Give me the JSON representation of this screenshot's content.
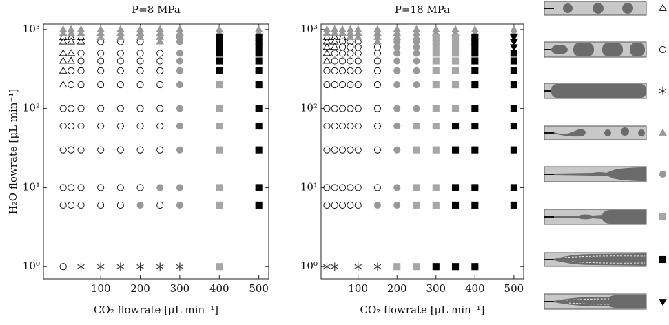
{
  "chart_data": [
    {
      "type": "scatter",
      "title": "P=8 MPa",
      "xlabel": "CO₂ flowrate [μL min⁻¹]",
      "ylabel": "H₂O flowrate [μL min⁻¹]",
      "xlim": [
        -45,
        525
      ],
      "xticks": [
        100,
        200,
        300,
        400,
        500
      ],
      "ylim": [
        0.7,
        1170
      ],
      "log_y": true,
      "yticks": [
        {
          "value": 1,
          "label": "10⁰"
        },
        {
          "value": 10,
          "label": "10¹"
        },
        {
          "value": 100,
          "label": "10²"
        },
        {
          "value": 1000,
          "label": "10³"
        }
      ],
      "series": [
        {
          "marker": "triangle-up",
          "filled": false,
          "color": "#000000",
          "x": [
            5,
            5,
            5,
            5,
            5,
            5,
            25,
            25,
            25,
            25,
            50,
            50
          ],
          "values": [
            800,
            700,
            500,
            400,
            300,
            200,
            800,
            700,
            500,
            400,
            800,
            700
          ]
        },
        {
          "marker": "circle",
          "filled": false,
          "color": "#000000",
          "x": [
            5,
            5,
            5,
            5,
            5,
            5,
            25,
            25,
            25,
            25,
            25,
            25,
            25,
            50,
            50,
            50,
            50,
            50,
            50,
            50,
            50,
            50,
            100,
            100,
            100,
            100,
            100,
            100,
            100,
            100,
            100,
            100,
            150,
            150,
            150,
            150,
            150,
            150,
            150,
            150,
            150,
            150,
            200,
            200,
            200,
            200,
            200,
            200,
            200,
            200,
            200,
            250,
            250,
            250,
            250,
            250,
            250,
            250,
            250
          ],
          "values": [
            100,
            60,
            30,
            10,
            6,
            1,
            300,
            200,
            100,
            60,
            30,
            10,
            6,
            500,
            400,
            300,
            200,
            100,
            60,
            30,
            10,
            6,
            700,
            500,
            400,
            300,
            200,
            100,
            60,
            30,
            10,
            6,
            700,
            500,
            400,
            300,
            200,
            100,
            60,
            30,
            10,
            6,
            700,
            500,
            400,
            300,
            200,
            100,
            60,
            30,
            10,
            500,
            400,
            300,
            200,
            100,
            60,
            30,
            6
          ]
        },
        {
          "marker": "star",
          "filled": false,
          "color": "#333333",
          "x": [
            50,
            100,
            150,
            200,
            250,
            300
          ],
          "values": [
            1,
            1,
            1,
            1,
            1,
            1
          ]
        },
        {
          "marker": "triangle-up",
          "filled": true,
          "color": "#999999",
          "x": [
            5,
            25,
            50,
            100,
            150,
            200,
            250,
            300,
            400,
            500,
            5,
            25,
            50,
            100,
            150,
            200,
            250,
            300,
            400,
            500,
            100,
            150,
            200,
            250,
            250
          ],
          "values": [
            1000,
            1000,
            1000,
            1000,
            1000,
            1000,
            1000,
            1000,
            1000,
            1000,
            900,
            900,
            900,
            900,
            900,
            900,
            900,
            900,
            900,
            900,
            800,
            800,
            800,
            800,
            700
          ]
        },
        {
          "marker": "circle",
          "filled": true,
          "color": "#999999",
          "x": [
            200,
            250,
            300,
            300,
            300,
            300,
            300,
            300,
            300,
            300,
            300,
            300,
            300
          ],
          "values": [
            6,
            10,
            800,
            700,
            500,
            400,
            300,
            200,
            100,
            60,
            30,
            10,
            6
          ]
        },
        {
          "marker": "square",
          "filled": true,
          "color": "#a6a6a6",
          "x": [
            400,
            400,
            400,
            400,
            400,
            400,
            400
          ],
          "values": [
            200,
            100,
            60,
            30,
            10,
            6,
            1
          ]
        },
        {
          "marker": "square",
          "filled": true,
          "color": "#000000",
          "x": [
            400,
            400,
            400,
            400,
            400,
            400,
            500,
            500,
            500,
            500,
            500,
            500,
            500,
            500,
            500,
            500,
            500,
            500
          ],
          "values": [
            800,
            700,
            600,
            500,
            400,
            300,
            800,
            700,
            600,
            500,
            400,
            300,
            200,
            100,
            60,
            30,
            10,
            6
          ]
        }
      ]
    },
    {
      "type": "scatter",
      "title": "P=18 MPa",
      "xlabel": "CO₂ flowrate [μL min⁻¹]",
      "xlim": [
        5,
        525
      ],
      "xticks": [
        100,
        200,
        300,
        400,
        500
      ],
      "ylim": [
        0.7,
        1170
      ],
      "log_y": true,
      "yticks": [
        {
          "value": 1,
          "label": "10⁰"
        },
        {
          "value": 10,
          "label": "10¹"
        },
        {
          "value": 100,
          "label": "10²"
        },
        {
          "value": 1000,
          "label": "10³"
        }
      ],
      "series": [
        {
          "marker": "triangle-up",
          "filled": false,
          "color": "#000000",
          "x": [
            20,
            20,
            20,
            20,
            20,
            40,
            40,
            40,
            60
          ],
          "values": [
            800,
            700,
            600,
            500,
            400,
            800,
            700,
            600,
            800
          ]
        },
        {
          "marker": "circle",
          "filled": false,
          "color": "#000000",
          "x": [
            20,
            20,
            20,
            20,
            20,
            20,
            20,
            40,
            40,
            40,
            40,
            40,
            40,
            40,
            40,
            40,
            60,
            60,
            60,
            60,
            60,
            60,
            60,
            60,
            60,
            60,
            60,
            80,
            80,
            80,
            80,
            80,
            80,
            80,
            80,
            80,
            80,
            80,
            100,
            100,
            100,
            100,
            100,
            100,
            100,
            100,
            100,
            100,
            100,
            150,
            150,
            150,
            150,
            150,
            150,
            150,
            150,
            150
          ],
          "values": [
            300,
            200,
            100,
            60,
            30,
            10,
            6,
            500,
            400,
            300,
            200,
            100,
            60,
            30,
            10,
            6,
            700,
            600,
            500,
            400,
            300,
            200,
            100,
            60,
            30,
            10,
            6,
            700,
            600,
            500,
            400,
            300,
            200,
            100,
            60,
            30,
            10,
            6,
            700,
            600,
            500,
            400,
            300,
            200,
            100,
            60,
            30,
            10,
            6,
            600,
            500,
            400,
            300,
            200,
            100,
            60,
            30,
            10
          ]
        },
        {
          "marker": "star",
          "filled": false,
          "color": "#333333",
          "x": [
            20,
            40,
            100,
            150
          ],
          "values": [
            1,
            1,
            1,
            1
          ]
        },
        {
          "marker": "triangle-up",
          "filled": true,
          "color": "#999999",
          "x": [
            20,
            40,
            60,
            80,
            100,
            150,
            200,
            250,
            300,
            350,
            400,
            500,
            20,
            40,
            60,
            80,
            100,
            150,
            200,
            250,
            300,
            350,
            400,
            500,
            80,
            100,
            150,
            200,
            250,
            150
          ],
          "values": [
            1000,
            1000,
            1000,
            1000,
            1000,
            1000,
            1000,
            1000,
            1000,
            1000,
            1000,
            1000,
            900,
            900,
            900,
            900,
            900,
            900,
            900,
            900,
            900,
            900,
            900,
            900,
            800,
            800,
            800,
            800,
            800,
            700
          ]
        },
        {
          "marker": "circle",
          "filled": true,
          "color": "#999999",
          "x": [
            150,
            200,
            200,
            200,
            200,
            200,
            200,
            200,
            200,
            200,
            200,
            200,
            250,
            250,
            250,
            250,
            250,
            250,
            250
          ],
          "values": [
            6,
            700,
            600,
            500,
            400,
            300,
            200,
            100,
            60,
            30,
            10,
            6,
            700,
            600,
            500,
            400,
            300,
            200,
            100
          ]
        },
        {
          "marker": "square",
          "filled": true,
          "color": "#a6a6a6",
          "x": [
            200,
            250,
            250,
            250,
            250,
            250,
            300,
            300,
            300,
            300,
            300,
            300,
            300,
            300,
            300,
            300,
            300,
            300,
            350,
            350,
            350,
            350,
            350,
            350,
            350,
            350
          ],
          "values": [
            1,
            60,
            30,
            10,
            6,
            1,
            800,
            700,
            600,
            500,
            400,
            300,
            200,
            100,
            60,
            30,
            10,
            6,
            800,
            700,
            600,
            500,
            400,
            300,
            200,
            100
          ]
        },
        {
          "marker": "square",
          "filled": true,
          "color": "#000000",
          "x": [
            300,
            350,
            350,
            350,
            350,
            350,
            400,
            400,
            400,
            400,
            400,
            400,
            400,
            400,
            400,
            400,
            400,
            400,
            400,
            500,
            500,
            500,
            500,
            500,
            500,
            500,
            500,
            500
          ],
          "values": [
            1,
            60,
            30,
            10,
            6,
            1,
            800,
            700,
            600,
            500,
            400,
            300,
            200,
            100,
            60,
            30,
            10,
            6,
            1,
            500,
            400,
            300,
            200,
            100,
            60,
            30,
            10,
            6
          ]
        },
        {
          "marker": "triangle-down",
          "filled": true,
          "color": "#000000",
          "x": [
            500,
            500,
            500
          ],
          "values": [
            800,
            700,
            600
          ]
        }
      ]
    }
  ]
}
